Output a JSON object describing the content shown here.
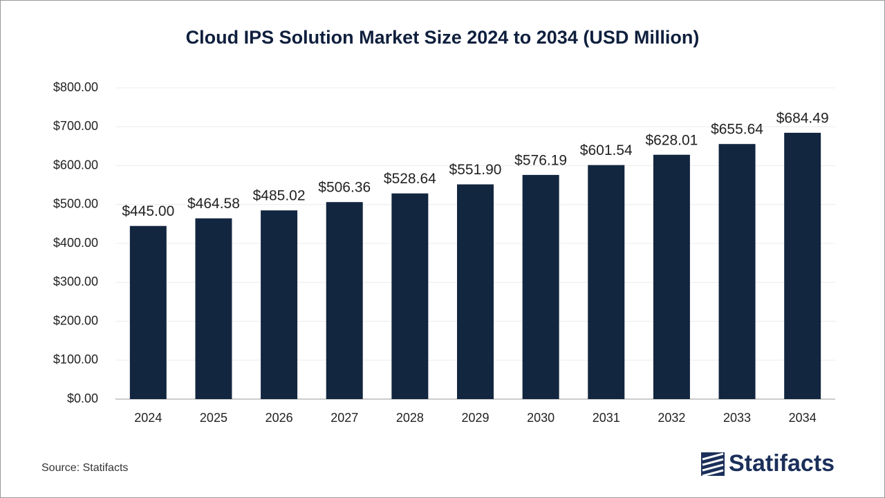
{
  "chart_data": {
    "type": "bar",
    "title": "Cloud IPS Solution Market Size 2024 to 2034 (USD Million)",
    "categories": [
      "2024",
      "2025",
      "2026",
      "2027",
      "2028",
      "2029",
      "2030",
      "2031",
      "2032",
      "2033",
      "2034"
    ],
    "values": [
      445.0,
      464.58,
      485.02,
      506.36,
      528.64,
      551.9,
      576.19,
      601.54,
      628.01,
      655.64,
      684.49
    ],
    "value_labels": [
      "$445.00",
      "$464.58",
      "$485.02",
      "$506.36",
      "$528.64",
      "$551.90",
      "$576.19",
      "$601.54",
      "$628.01",
      "$655.64",
      "$684.49"
    ],
    "color": "#13263f",
    "ylim": [
      0,
      800
    ],
    "yticks": [
      {
        "value": 0,
        "label": "$0.00"
      },
      {
        "value": 100,
        "label": "$100.00"
      },
      {
        "value": 200,
        "label": "$200.00"
      },
      {
        "value": 300,
        "label": "$300.00"
      },
      {
        "value": 400,
        "label": "$400.00"
      },
      {
        "value": 500,
        "label": "$500.00"
      },
      {
        "value": 600,
        "label": "$600.00"
      },
      {
        "value": 700,
        "label": "$700.00"
      },
      {
        "value": 800,
        "label": "$800.00"
      }
    ],
    "grid": true,
    "source": "Source: Statifacts",
    "logo": "Statifacts"
  }
}
